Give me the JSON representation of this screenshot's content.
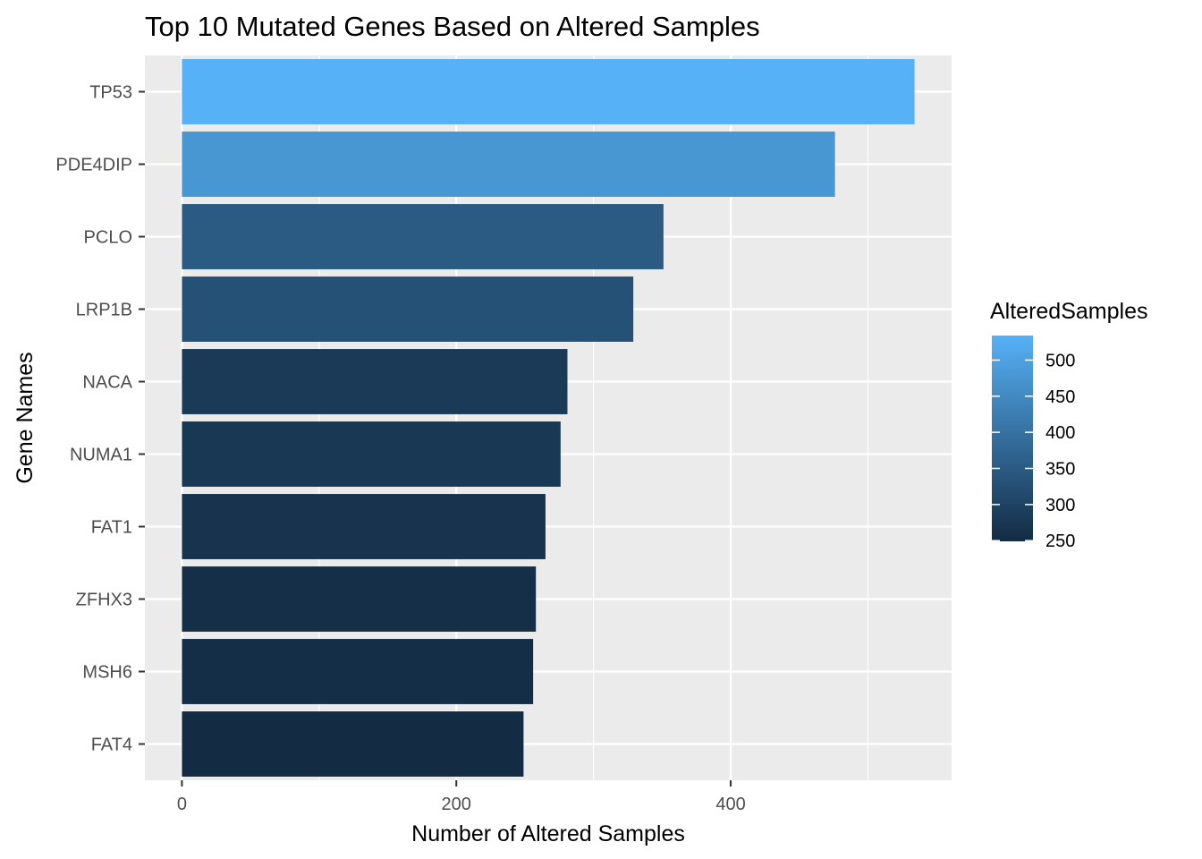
{
  "chart_data": {
    "type": "bar",
    "orientation": "horizontal",
    "title": "Top 10 Mutated Genes Based on Altered Samples",
    "xlabel": "Number of Altered Samples",
    "ylabel": "Gene Names",
    "categories": [
      "TP53",
      "PDE4DIP",
      "PCLO",
      "LRP1B",
      "NACA",
      "NUMA1",
      "FAT1",
      "ZFHX3",
      "MSH6",
      "FAT4"
    ],
    "values": [
      534,
      476,
      351,
      329,
      281,
      276,
      265,
      258,
      256,
      249
    ],
    "xlim": [
      -27,
      561
    ],
    "x_ticks": [
      0,
      200,
      400
    ],
    "x_tick_labels": [
      "0",
      "200",
      "400"
    ],
    "grid": true,
    "legend": {
      "title": "AlteredSamples",
      "placement": "right",
      "ticks": [
        500,
        450,
        400,
        350,
        300,
        250
      ],
      "tick_labels": [
        "500",
        "450",
        "400",
        "350",
        "300",
        "250"
      ],
      "range": [
        249,
        534
      ],
      "low_color": "#132B43",
      "high_color": "#56B1F7"
    },
    "panel_color": "#EBEBEB",
    "grid_color": "#FFFFFF"
  }
}
